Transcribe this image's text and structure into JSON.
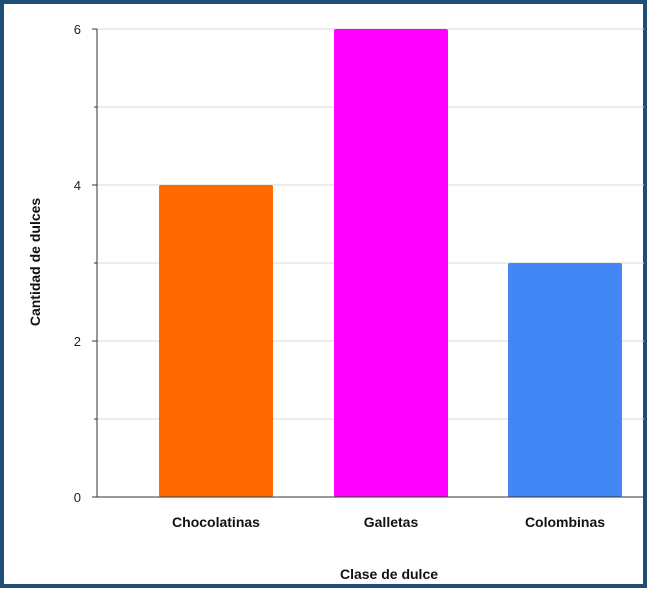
{
  "chart_data": {
    "type": "bar",
    "categories": [
      "Chocolatinas",
      "Galletas",
      "Colombinas"
    ],
    "values": [
      4,
      6,
      3
    ],
    "colors": [
      "#ff6a00",
      "#ff00ff",
      "#4287f5"
    ],
    "title": "",
    "xlabel": "Clase de dulce",
    "ylabel": "Cantidad de dulces",
    "ylim": [
      0,
      6
    ],
    "major_ticks": [
      0,
      2,
      4,
      6
    ],
    "minor_ticks": [
      1,
      3,
      5
    ],
    "grid": true,
    "legend": "none"
  }
}
